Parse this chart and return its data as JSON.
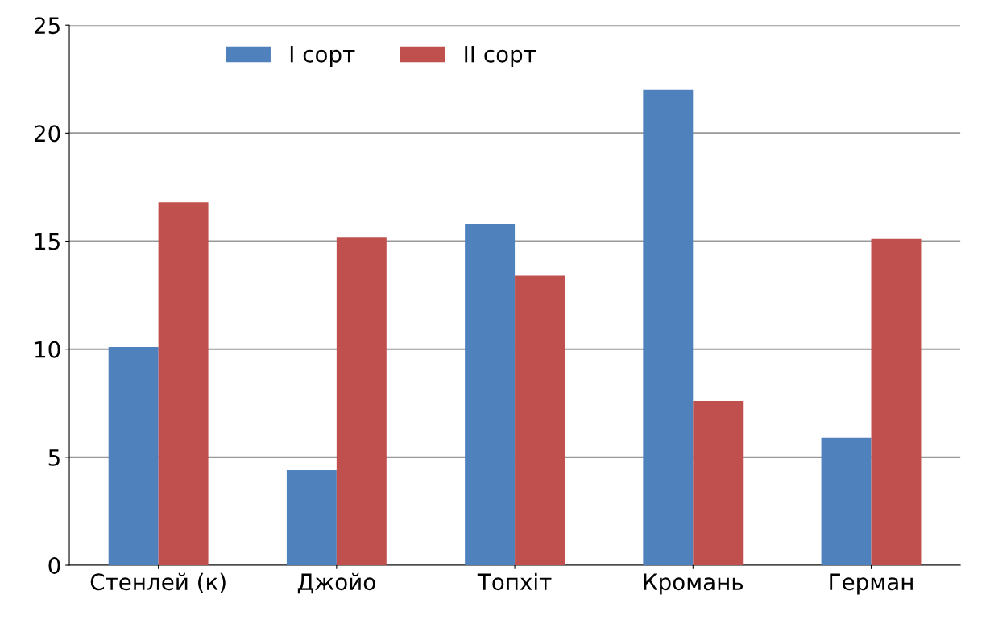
{
  "chart_data": {
    "type": "bar",
    "categories": [
      "Стенлей (к)",
      "Джойо",
      "Топхіт",
      "Кромань",
      "Герман"
    ],
    "series": [
      {
        "name": "I сорт",
        "color": "#4f81bd",
        "values": [
          10.1,
          4.4,
          15.8,
          22.0,
          5.9
        ]
      },
      {
        "name": "II сорт",
        "color": "#c0504d",
        "values": [
          16.8,
          15.2,
          13.4,
          7.6,
          15.1
        ]
      }
    ],
    "ylim": [
      0,
      25
    ],
    "yticks": [
      0,
      5,
      10,
      15,
      20,
      25
    ],
    "grid": "y",
    "legend": "top"
  }
}
